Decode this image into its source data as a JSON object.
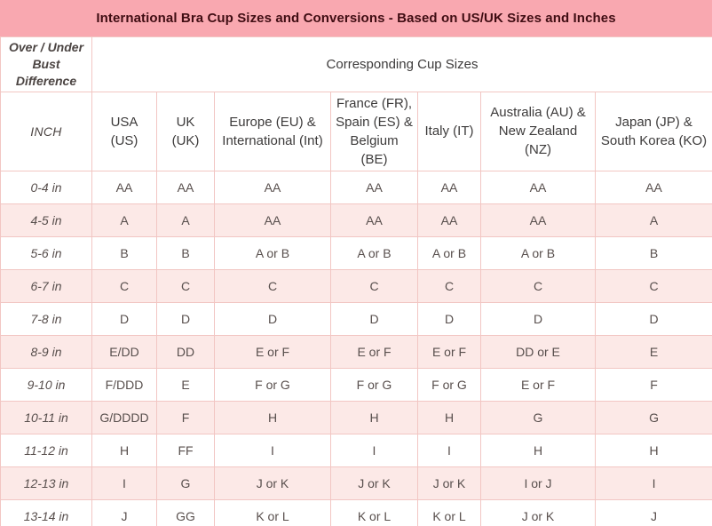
{
  "title": "International Bra Cup Sizes and Conversions - Based on US/UK Sizes and Inches",
  "colors": {
    "title_bar_bg": "#f9a8b0",
    "title_text": "#400d13",
    "alt_row_bg": "#fce9e7",
    "grid_border": "#f2c6c3",
    "header_text": "#3d3b3b",
    "cell_text": "#584f4d"
  },
  "table": {
    "corner_label": "Over / Under Bust Difference",
    "group_header": "Corresponding Cup Sizes",
    "unit_header": "INCH",
    "columns": [
      "USA (US)",
      "UK (UK)",
      "Europe (EU) & International (Int)",
      "France (FR), Spain (ES) & Belgium (BE)",
      "Italy (IT)",
      "Australia (AU) & New Zealand (NZ)",
      "Japan (JP) & South Korea (KO)"
    ],
    "rows": [
      {
        "inch": "0-4 in",
        "values": [
          "AA",
          "AA",
          "AA",
          "AA",
          "AA",
          "AA",
          "AA"
        ]
      },
      {
        "inch": "4-5 in",
        "values": [
          "A",
          "A",
          "AA",
          "AA",
          "AA",
          "AA",
          "A"
        ]
      },
      {
        "inch": "5-6 in",
        "values": [
          "B",
          "B",
          "A or B",
          "A or B",
          "A or B",
          "A or B",
          "B"
        ]
      },
      {
        "inch": "6-7 in",
        "values": [
          "C",
          "C",
          "C",
          "C",
          "C",
          "C",
          "C"
        ]
      },
      {
        "inch": "7-8 in",
        "values": [
          "D",
          "D",
          "D",
          "D",
          "D",
          "D",
          "D"
        ]
      },
      {
        "inch": "8-9 in",
        "values": [
          "E/DD",
          "DD",
          "E or F",
          "E or F",
          "E or F",
          "DD or E",
          "E"
        ]
      },
      {
        "inch": "9-10 in",
        "values": [
          "F/DDD",
          "E",
          "F or G",
          "F or G",
          "F or G",
          "E or F",
          "F"
        ]
      },
      {
        "inch": "10-11 in",
        "values": [
          "G/DDDD",
          "F",
          "H",
          "H",
          "H",
          "G",
          "G"
        ]
      },
      {
        "inch": "11-12 in",
        "values": [
          "H",
          "FF",
          "I",
          "I",
          "I",
          "H",
          "H"
        ]
      },
      {
        "inch": "12-13 in",
        "values": [
          "I",
          "G",
          "J or K",
          "J or K",
          "J or K",
          "I or J",
          "I"
        ]
      },
      {
        "inch": "13-14 in",
        "values": [
          "J",
          "GG",
          "K or L",
          "K or L",
          "K or L",
          "J or K",
          "J"
        ]
      }
    ]
  },
  "chart_data": {
    "type": "table",
    "title": "International Bra Cup Sizes and Conversions - Based on US/UK Sizes and Inches",
    "column_group_label": "Corresponding Cup Sizes",
    "columns": [
      "Over / Under Bust Difference (INCH)",
      "USA (US)",
      "UK (UK)",
      "Europe (EU) & International (Int)",
      "France (FR), Spain (ES) & Belgium (BE)",
      "Italy (IT)",
      "Australia (AU) & New Zealand (NZ)",
      "Japan (JP) & South Korea (KO)"
    ],
    "rows": [
      [
        "0-4 in",
        "AA",
        "AA",
        "AA",
        "AA",
        "AA",
        "AA",
        "AA"
      ],
      [
        "4-5 in",
        "A",
        "A",
        "AA",
        "AA",
        "AA",
        "AA",
        "A"
      ],
      [
        "5-6 in",
        "B",
        "B",
        "A or B",
        "A or B",
        "A or B",
        "A or B",
        "B"
      ],
      [
        "6-7 in",
        "C",
        "C",
        "C",
        "C",
        "C",
        "C",
        "C"
      ],
      [
        "7-8 in",
        "D",
        "D",
        "D",
        "D",
        "D",
        "D",
        "D"
      ],
      [
        "8-9 in",
        "E/DD",
        "DD",
        "E or F",
        "E or F",
        "E or F",
        "DD or E",
        "E"
      ],
      [
        "9-10 in",
        "F/DDD",
        "E",
        "F or G",
        "F or G",
        "F or G",
        "E or F",
        "F"
      ],
      [
        "10-11 in",
        "G/DDDD",
        "F",
        "H",
        "H",
        "H",
        "G",
        "G"
      ],
      [
        "11-12 in",
        "H",
        "FF",
        "I",
        "I",
        "I",
        "H",
        "H"
      ],
      [
        "12-13 in",
        "I",
        "G",
        "J or K",
        "J or K",
        "J or K",
        "I or J",
        "I"
      ],
      [
        "13-14 in",
        "J",
        "GG",
        "K or L",
        "K or L",
        "K or L",
        "J or K",
        "J"
      ]
    ]
  }
}
